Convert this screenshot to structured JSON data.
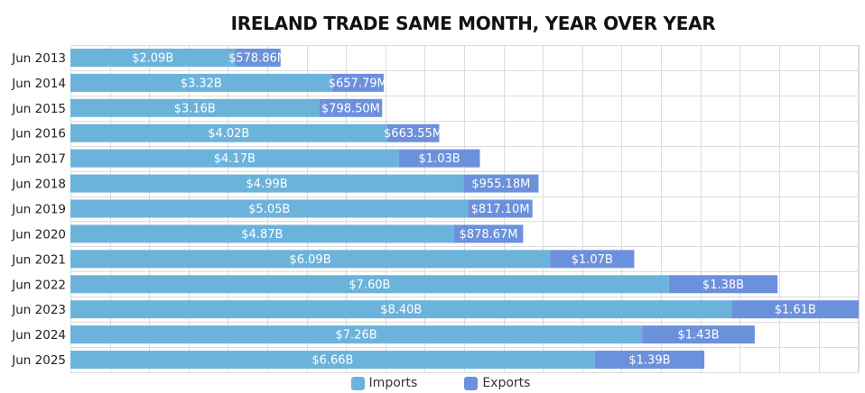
{
  "chart_data": {
    "type": "bar",
    "orientation": "horizontal",
    "stacked": true,
    "title": "IRELAND TRADE SAME MONTH, YEAR OVER YEAR",
    "xlabel": "",
    "ylabel": "",
    "units": "USD billions",
    "xlim": [
      0,
      10.01
    ],
    "grid": true,
    "legend_position": "bottom",
    "categories": [
      "Jun 2013",
      "Jun 2014",
      "Jun 2015",
      "Jun 2016",
      "Jun 2017",
      "Jun 2018",
      "Jun 2019",
      "Jun 2020",
      "Jun 2021",
      "Jun 2022",
      "Jun 2023",
      "Jun 2024",
      "Jun 2025"
    ],
    "series": [
      {
        "name": "Imports",
        "color": "#6bb3db",
        "values": [
          2.09,
          3.32,
          3.16,
          4.02,
          4.17,
          4.99,
          5.05,
          4.87,
          6.09,
          7.6,
          8.4,
          7.26,
          6.66
        ],
        "labels": [
          "$2.09B",
          "$3.32B",
          "$3.16B",
          "$4.02B",
          "$4.17B",
          "$4.99B",
          "$5.05B",
          "$4.87B",
          "$6.09B",
          "$7.60B",
          "$8.40B",
          "$7.26B",
          "$6.66B"
        ]
      },
      {
        "name": "Exports",
        "color": "#6c91dc",
        "values": [
          0.57886,
          0.65779,
          0.7985,
          0.66355,
          1.03,
          0.95518,
          0.8171,
          0.87867,
          1.07,
          1.38,
          1.61,
          1.43,
          1.39
        ],
        "labels": [
          "$578.86M",
          "$657.79M",
          "$798.50M",
          "$663.55M",
          "$1.03B",
          "$955.18M",
          "$817.10M",
          "$878.67M",
          "$1.07B",
          "$1.38B",
          "$1.61B",
          "$1.43B",
          "$1.39B"
        ]
      }
    ]
  }
}
